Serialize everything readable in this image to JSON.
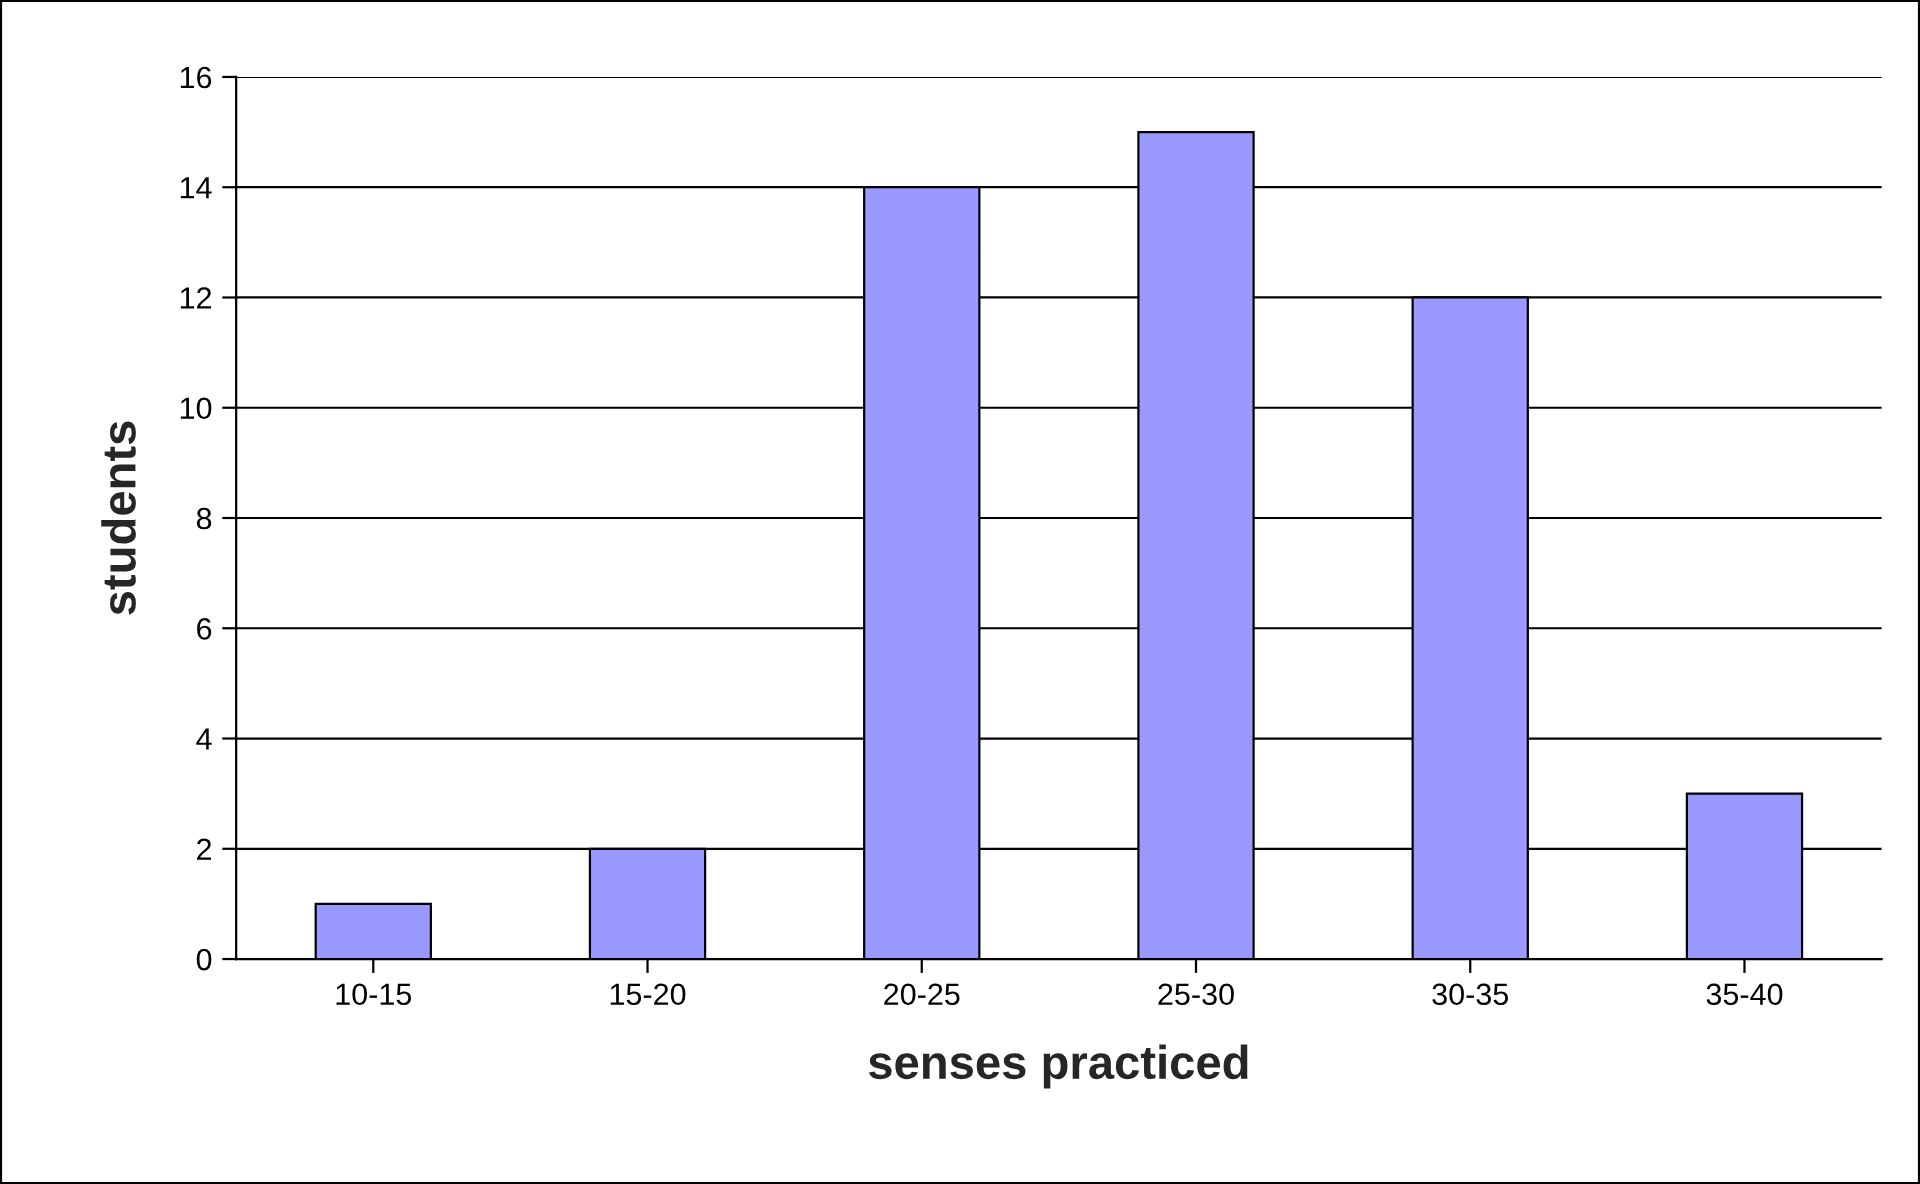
{
  "chart_data": {
    "type": "bar",
    "xlabel": "senses practiced",
    "ylabel": "students",
    "categories": [
      "10-15",
      "15-20",
      "20-25",
      "25-30",
      "30-35",
      "35-40"
    ],
    "values": [
      1,
      2,
      14,
      15,
      12,
      3
    ],
    "color": "#9999ff",
    "ylim": [
      0,
      16
    ],
    "yticks": [
      0,
      2,
      4,
      6,
      8,
      10,
      12,
      14,
      16
    ],
    "grid": "y",
    "legend": false
  }
}
